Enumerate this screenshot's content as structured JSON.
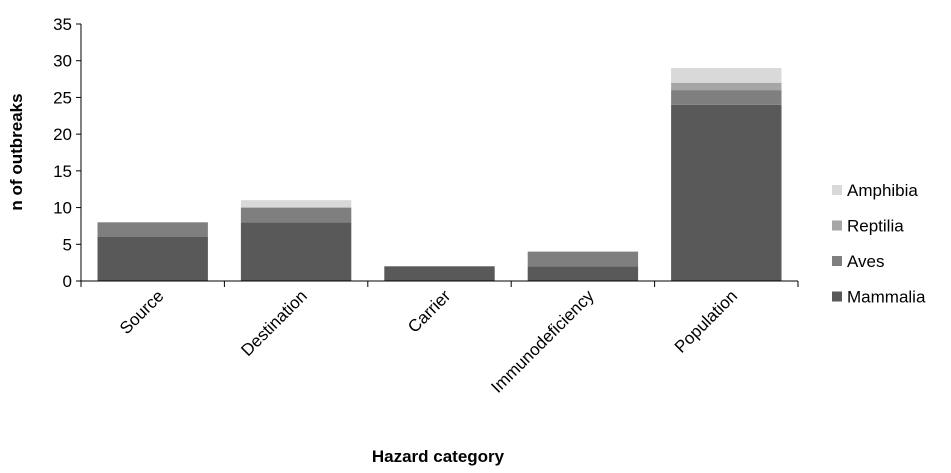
{
  "chart_data": {
    "type": "bar",
    "stacked": true,
    "title": "",
    "xlabel": "Hazard category",
    "ylabel": "n of outbreaks",
    "ylim": [
      0,
      35
    ],
    "yticks": [
      0,
      5,
      10,
      15,
      20,
      25,
      30,
      35
    ],
    "grid": false,
    "legend_position": "right",
    "categories": [
      "Source",
      "Destination",
      "Carrier",
      "Immunodeficiency",
      "Population"
    ],
    "series": [
      {
        "name": "Mammalia",
        "color": "#595959",
        "values": [
          6,
          8,
          2,
          2,
          24
        ]
      },
      {
        "name": "Aves",
        "color": "#7f7f7f",
        "values": [
          2,
          2,
          0,
          2,
          2
        ]
      },
      {
        "name": "Reptilia",
        "color": "#a6a6a6",
        "values": [
          0,
          0,
          0,
          0,
          1
        ]
      },
      {
        "name": "Amphibia",
        "color": "#d9d9d9",
        "values": [
          0,
          1,
          0,
          0,
          2
        ]
      }
    ]
  }
}
